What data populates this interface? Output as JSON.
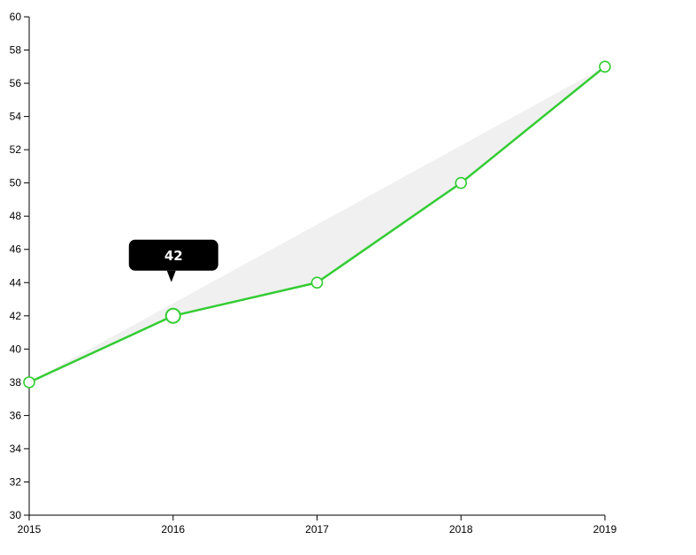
{
  "chart_data": {
    "type": "line",
    "x": [
      "2015",
      "2016",
      "2017",
      "2018",
      "2019"
    ],
    "series": [
      {
        "values": [
          38,
          42,
          44,
          50,
          57
        ]
      }
    ],
    "ylim": [
      30,
      60
    ],
    "yticks": [
      "30",
      "32",
      "34",
      "36",
      "38",
      "40",
      "42",
      "44",
      "46",
      "48",
      "50",
      "52",
      "54",
      "56",
      "58",
      "60"
    ],
    "line_color": "#33cc33",
    "area_color": "#f0f0f0",
    "grid": false,
    "highlighted_index": 1,
    "tooltip": {
      "text": "42",
      "background": "#000000",
      "color": "#ffffff"
    }
  }
}
